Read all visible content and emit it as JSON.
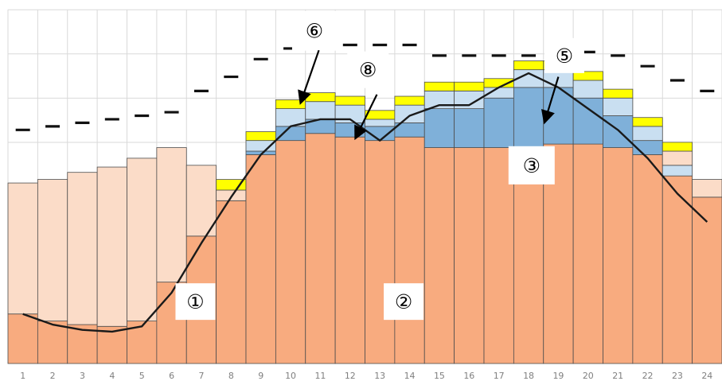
{
  "chart_data": {
    "type": "bar",
    "stacked": true,
    "grid": true,
    "legend": "none",
    "ylim": [
      0,
      100
    ],
    "categories": [
      "1",
      "2",
      "3",
      "4",
      "5",
      "6",
      "7",
      "8",
      "9",
      "10",
      "11",
      "12",
      "13",
      "14",
      "15",
      "16",
      "17",
      "18",
      "19",
      "20",
      "21",
      "22",
      "23",
      "24"
    ],
    "series": [
      {
        "values": [
          14,
          12,
          11,
          10.5,
          12,
          23,
          36,
          46,
          59,
          63,
          65,
          64,
          63,
          64,
          61,
          61,
          61,
          61,
          62,
          62,
          61,
          59,
          53,
          47
        ],
        "color": "#f8ab7f"
      },
      {
        "values": [
          0,
          0,
          0,
          0,
          0,
          0,
          0,
          0,
          1,
          4,
          4,
          4,
          4,
          4,
          11,
          11,
          14,
          17,
          16,
          13,
          9,
          4,
          0,
          0
        ],
        "color": "#7fb0d9"
      },
      {
        "values": [
          0,
          0,
          0,
          0,
          0,
          0,
          0,
          0,
          3,
          5,
          5,
          5,
          2,
          5,
          5,
          5,
          3,
          5,
          5,
          5,
          5,
          4,
          3,
          0
        ],
        "color": "#c9dff1"
      },
      {
        "values": [
          37,
          40,
          43,
          45,
          46,
          38,
          20,
          3,
          0,
          0,
          0,
          0,
          0,
          0,
          0,
          0,
          0,
          0,
          0,
          0,
          0,
          0,
          4,
          5
        ],
        "color": "#fbdcc8"
      },
      {
        "values": [
          0,
          0,
          0,
          0,
          0,
          0,
          0,
          3,
          2.5,
          2.5,
          2.5,
          2.5,
          2.5,
          2.5,
          2.5,
          2.5,
          2.5,
          2.5,
          2.5,
          2.5,
          2.5,
          2.5,
          2.5,
          0
        ],
        "color": "#ffff00"
      }
    ],
    "line": {
      "values": [
        14,
        11,
        9.5,
        9,
        10.5,
        20,
        34,
        47,
        59,
        67,
        69,
        69,
        63,
        70,
        73,
        73,
        78,
        82,
        78,
        72,
        66,
        58,
        48,
        40
      ],
      "color": "#1a1a1a"
    },
    "dashed_line": {
      "values": [
        66,
        67,
        68,
        69,
        70,
        71,
        77,
        81,
        86,
        89,
        91,
        90,
        90,
        90,
        87,
        87,
        87,
        87,
        88,
        88,
        87,
        84,
        80,
        77
      ],
      "color": "#111111"
    },
    "annotations": {
      "a1": "①",
      "a2": "②",
      "a3": "③",
      "a5": "⑤",
      "a6": "⑥",
      "a8": "⑧"
    }
  }
}
